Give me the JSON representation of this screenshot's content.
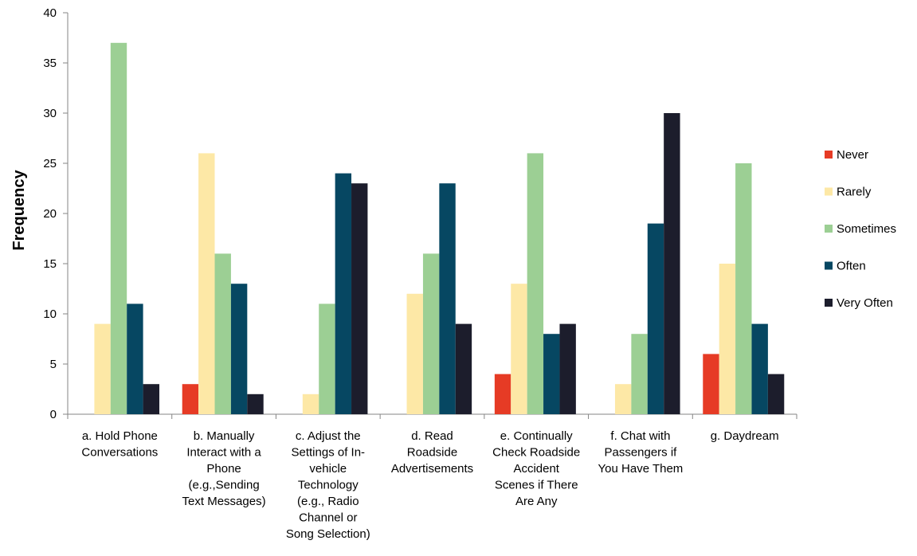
{
  "chart_data": {
    "type": "bar",
    "title": "",
    "xlabel": "",
    "ylabel": "Frequency",
    "ylim": [
      0,
      40
    ],
    "yticks": [
      0,
      5,
      10,
      15,
      20,
      25,
      30,
      35,
      40
    ],
    "grid": false,
    "legend_position": "right",
    "categories": [
      [
        "a. Hold Phone",
        "Conversations"
      ],
      [
        "b. Manually",
        "Interact with a",
        "Phone",
        "(e.g.,Sending",
        "Text Messages)"
      ],
      [
        "c. Adjust the",
        "Settings of In-",
        "vehicle",
        "Technology",
        "(e.g., Radio",
        "Channel or",
        "Song Selection)"
      ],
      [
        "d. Read",
        "Roadside",
        "Advertisements"
      ],
      [
        "e. Continually",
        "Check Roadside",
        "Accident",
        "Scenes if There",
        "Are Any"
      ],
      [
        "f. Chat with",
        "Passengers if",
        "You Have Them"
      ],
      [
        "g. Daydream"
      ]
    ],
    "series": [
      {
        "name": "Never",
        "color": "#e63b25",
        "values": [
          0,
          3,
          0,
          0,
          4,
          0,
          6
        ]
      },
      {
        "name": "Rarely",
        "color": "#fde8a6",
        "values": [
          9,
          26,
          2,
          12,
          13,
          3,
          15
        ]
      },
      {
        "name": "Sometimes",
        "color": "#9ccf94",
        "values": [
          37,
          16,
          11,
          16,
          26,
          8,
          25
        ]
      },
      {
        "name": "Often",
        "color": "#064762",
        "values": [
          11,
          13,
          24,
          23,
          8,
          19,
          9
        ]
      },
      {
        "name": "Very Often",
        "color": "#1c1d2c",
        "values": [
          3,
          2,
          23,
          9,
          9,
          30,
          4
        ]
      }
    ]
  }
}
